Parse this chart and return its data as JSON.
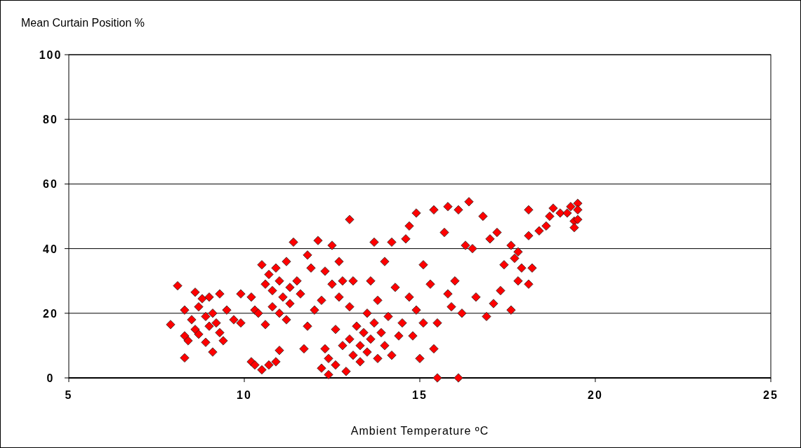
{
  "chart_data": {
    "type": "scatter",
    "ylabel": "Mean Curtain Position %",
    "xlabel": "Ambient Temperature ºC",
    "xlim": [
      5,
      25
    ],
    "xticks": [
      5,
      10,
      15,
      20,
      25
    ],
    "ylim": [
      0,
      100
    ],
    "yticks": [
      0,
      20,
      40,
      60,
      80,
      100
    ],
    "grid": "y",
    "marker": "diamond",
    "series": [
      {
        "color": "#ff0000",
        "x": [
          7.9,
          8.1,
          8.3,
          8.3,
          8.3,
          8.4,
          8.5,
          8.6,
          8.6,
          8.7,
          8.7,
          8.8,
          8.9,
          8.9,
          9.0,
          9.0,
          9.1,
          9.1,
          9.2,
          9.3,
          9.3,
          9.4,
          9.5,
          9.7,
          9.9,
          9.9,
          10.2,
          10.2,
          10.3,
          10.3,
          10.4,
          10.5,
          10.5,
          10.6,
          10.6,
          10.7,
          10.7,
          10.8,
          10.8,
          10.9,
          10.9,
          11.0,
          11.0,
          11.0,
          11.1,
          11.2,
          11.2,
          11.3,
          11.3,
          11.4,
          11.5,
          11.6,
          11.7,
          11.8,
          11.8,
          11.9,
          12.0,
          12.1,
          12.2,
          12.2,
          12.3,
          12.3,
          12.4,
          12.4,
          12.5,
          12.5,
          12.6,
          12.6,
          12.7,
          12.7,
          12.8,
          12.8,
          12.9,
          13.0,
          13.0,
          13.0,
          13.1,
          13.1,
          13.2,
          13.3,
          13.3,
          13.4,
          13.5,
          13.5,
          13.6,
          13.6,
          13.7,
          13.7,
          13.8,
          13.8,
          13.9,
          14.0,
          14.0,
          14.1,
          14.2,
          14.2,
          14.3,
          14.4,
          14.5,
          14.6,
          14.7,
          14.7,
          14.8,
          14.9,
          14.9,
          15.0,
          15.1,
          15.1,
          15.3,
          15.4,
          15.4,
          15.5,
          15.5,
          15.7,
          15.8,
          15.8,
          15.9,
          16.0,
          16.1,
          16.1,
          16.2,
          16.3,
          16.4,
          16.5,
          16.6,
          16.8,
          16.9,
          17.0,
          17.1,
          17.2,
          17.3,
          17.4,
          17.6,
          17.6,
          17.7,
          17.8,
          17.8,
          17.9,
          18.1,
          18.1,
          18.1,
          18.2,
          18.4,
          18.6,
          18.7,
          18.8,
          19.0,
          19.2,
          19.3,
          19.4,
          19.4,
          19.5,
          19.5,
          19.5
        ],
        "values": [
          16.5,
          28.5,
          6.2,
          21,
          13,
          11.5,
          18,
          26.5,
          15,
          22,
          13.5,
          24.5,
          11,
          19,
          16,
          25,
          8,
          20,
          17,
          14,
          26,
          11.5,
          21,
          18,
          26,
          17,
          25,
          5,
          21,
          4,
          20,
          35,
          2.5,
          29,
          16.5,
          32,
          4,
          22,
          27,
          5,
          34,
          30,
          8.5,
          20,
          25,
          36,
          18,
          28,
          23,
          42,
          30,
          26,
          9,
          16,
          38,
          34,
          21,
          42.5,
          24,
          3,
          9,
          33,
          1,
          6,
          29,
          41,
          15,
          4,
          25,
          36,
          10,
          30,
          2,
          49,
          12,
          22,
          7,
          30,
          16,
          10,
          5,
          14,
          20,
          8,
          30,
          12,
          42,
          17,
          6,
          24,
          14,
          36,
          10,
          19,
          42,
          7,
          28,
          13,
          17,
          43,
          47,
          25,
          13,
          51,
          21,
          6,
          35,
          17,
          29,
          52,
          9,
          0,
          17,
          45,
          53,
          26,
          22,
          30,
          52,
          0,
          20,
          41,
          54.5,
          40,
          25,
          50,
          19,
          43,
          23,
          45,
          27,
          35,
          41,
          21,
          37,
          30,
          39,
          34,
          29,
          52,
          44,
          34,
          45.5,
          47,
          50,
          52.5,
          51,
          51,
          53,
          48.5,
          46.5,
          54,
          52,
          49
        ]
      }
    ]
  }
}
